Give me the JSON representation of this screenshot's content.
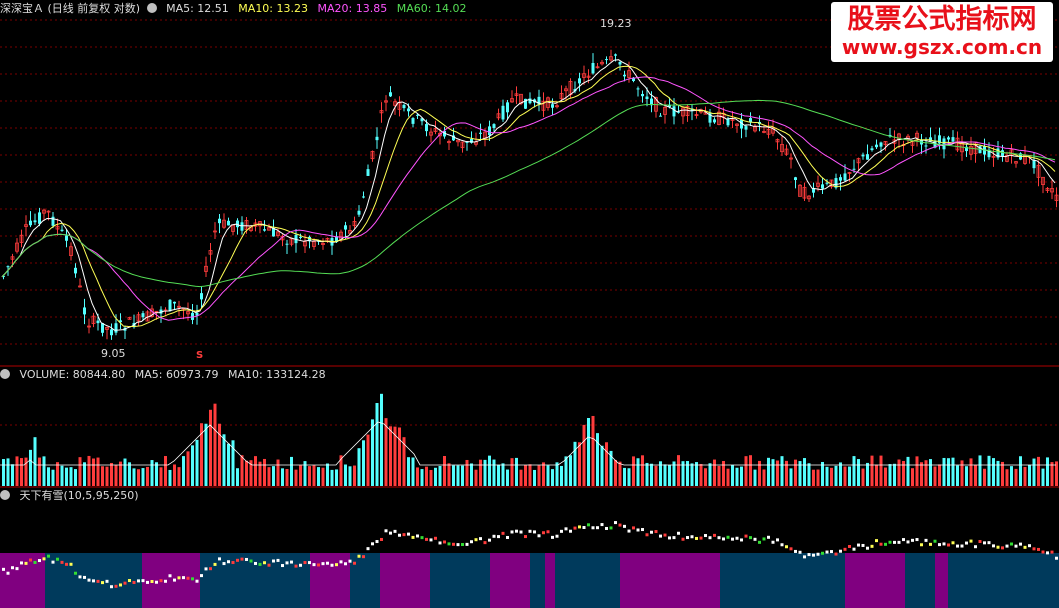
{
  "price_panel": {
    "title": "深深宝Ａ (日线 前复权 对数)",
    "ma5": "MA5: 12.51",
    "ma10": "MA10: 13.23",
    "ma20": "MA20: 13.85",
    "ma60": "MA60: 14.02",
    "high_label": "19.23",
    "low_label": "9.05",
    "marker_label": "S"
  },
  "volume_panel": {
    "title": "VOLUME: 80844.80",
    "ma5": "MA5: 60973.79",
    "ma10": "MA10: 133124.28"
  },
  "indicator_panel": {
    "title": "天下有雪(10,5,95,250)"
  },
  "watermark": {
    "line1": "股票公式指标网",
    "line2": "www.gszx.com.cn"
  },
  "colors": {
    "up": "#ff3c3c",
    "down": "#54ffff",
    "ma5": "#ffffff",
    "ma10": "#ffff55",
    "ma20": "#ff55ff",
    "ma60": "#55dd55",
    "grid": "#7a0000",
    "purple": "#800080",
    "blue": "#003a5c"
  },
  "icons": [
    "settings-circle-icon"
  ]
}
